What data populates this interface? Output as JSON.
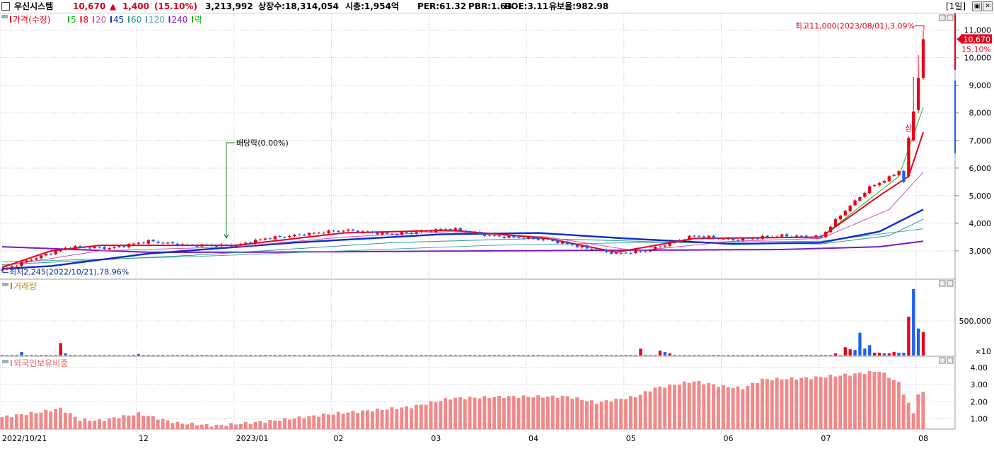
{
  "header": {
    "stock_name": "우신시스템",
    "price": "10,670",
    "change_arrow": "▲",
    "change": "1,400",
    "change_pct": "(15.10%)",
    "volume": "3,213,992",
    "listed_shares": "상장수:18,314,054",
    "market_cap": "시총:1,954억",
    "per": "PER:61.32",
    "pbr": "PBR:1.63",
    "roe": "ROE:3.11",
    "reserve_ratio": "유보율:982.98",
    "period": "[1일]",
    "win_restore": "▣",
    "win_close": "✕"
  },
  "colors": {
    "up": "#e8001a",
    "down": "#1e5ff0",
    "ma5": "#19b319",
    "ma8": "#e8001a",
    "ma20": "#d050b8",
    "ma45": "#0a2cc8",
    "ma60": "#2a9b8f",
    "ma120": "#4fa8a0",
    "ma240": "#7a18c8",
    "foreign": "#f28888",
    "grid": "#c8c8c8"
  },
  "chart_data": [
    {
      "type": "candlestick",
      "panel": "price",
      "legend": [
        {
          "label": "가격(수정)",
          "color": "#e8001a"
        },
        {
          "label": "5",
          "color": "#19b319"
        },
        {
          "label": "8",
          "color": "#e8001a"
        },
        {
          "label": "20",
          "color": "#d050b8"
        },
        {
          "label": "45",
          "color": "#0a2cc8"
        },
        {
          "label": "60",
          "color": "#2a9b8f"
        },
        {
          "label": "120",
          "color": "#4fa8a0"
        },
        {
          "label": "240",
          "color": "#7a18c8"
        },
        {
          "label": "락",
          "color": "#19b319"
        }
      ],
      "y_ticks": [
        {
          "label": "11,000",
          "v": 11000
        },
        {
          "label": "10,000",
          "v": 10000
        },
        {
          "label": "9,000",
          "v": 9000
        },
        {
          "label": "8,000",
          "v": 8000
        },
        {
          "label": "7,000",
          "v": 7000
        },
        {
          "label": "6,000",
          "v": 6000
        },
        {
          "label": "5,000",
          "v": 5000
        },
        {
          "label": "4,000",
          "v": 4000
        },
        {
          "label": "3,000",
          "v": 3000
        }
      ],
      "ylim": [
        2000,
        11400
      ],
      "current_price": {
        "label": "10,670",
        "value": 10670,
        "pct_label": "15.10%"
      },
      "annotations": {
        "high": {
          "label": "최고11,000(2023/08/01),3.09%",
          "value": 11000
        },
        "low": {
          "label": "최저2,245(2022/10/21),78.96%",
          "value": 2245
        },
        "dividend": {
          "label": "배당락(0.00%)",
          "date": "2022/12/28"
        },
        "upper_limit": {
          "label": "상",
          "date": "2023/07/27"
        }
      },
      "x_labels": [
        "2022/10/21",
        "12",
        "2023/01",
        "02",
        "03",
        "04",
        "05",
        "06",
        "07",
        "08"
      ],
      "x_label_index": [
        0,
        28,
        48,
        68,
        88,
        108,
        128,
        148,
        168,
        188
      ],
      "price_anchors": [
        {
          "i": 0,
          "close": 2300
        },
        {
          "i": 6,
          "close": 2700
        },
        {
          "i": 14,
          "close": 3150
        },
        {
          "i": 22,
          "close": 3100
        },
        {
          "i": 30,
          "close": 3350
        },
        {
          "i": 38,
          "close": 3200
        },
        {
          "i": 48,
          "close": 3200
        },
        {
          "i": 54,
          "close": 3450
        },
        {
          "i": 70,
          "close": 3750
        },
        {
          "i": 80,
          "close": 3600
        },
        {
          "i": 92,
          "close": 3800
        },
        {
          "i": 100,
          "close": 3550
        },
        {
          "i": 112,
          "close": 3400
        },
        {
          "i": 120,
          "close": 3100
        },
        {
          "i": 126,
          "close": 2900
        },
        {
          "i": 132,
          "close": 3000
        },
        {
          "i": 142,
          "close": 3550
        },
        {
          "i": 150,
          "close": 3400
        },
        {
          "i": 160,
          "close": 3550
        },
        {
          "i": 168,
          "close": 3500
        },
        {
          "i": 172,
          "close": 4300
        },
        {
          "i": 178,
          "close": 5300
        },
        {
          "i": 182,
          "close": 5650
        },
        {
          "i": 184,
          "close": 5900
        },
        {
          "i": 185,
          "close": 5500
        },
        {
          "i": 186,
          "close": 7100
        },
        {
          "i": 187,
          "close": 8050
        },
        {
          "i": 188,
          "close": 9270
        },
        {
          "i": 189,
          "close": 10670
        }
      ],
      "recent_candles": [
        {
          "i": 186,
          "open": 5700,
          "high": 7150,
          "low": 5650,
          "close": 7100
        },
        {
          "i": 187,
          "open": 7000,
          "high": 9300,
          "low": 6950,
          "close": 8050
        },
        {
          "i": 188,
          "open": 8100,
          "high": 10100,
          "low": 8000,
          "close": 9270
        },
        {
          "i": 189,
          "open": 9270,
          "high": 11000,
          "low": 9200,
          "close": 10670
        }
      ],
      "moving_averages": {
        "ma5": [
          {
            "i": 168,
            "v": 3500
          },
          {
            "i": 176,
            "v": 4600
          },
          {
            "i": 184,
            "v": 5700
          },
          {
            "i": 189,
            "v": 8200
          }
        ],
        "ma8": [
          {
            "i": 0,
            "v": 2400
          },
          {
            "i": 10,
            "v": 3000
          },
          {
            "i": 20,
            "v": 3200
          },
          {
            "i": 48,
            "v": 3200
          },
          {
            "i": 70,
            "v": 3650
          },
          {
            "i": 92,
            "v": 3750
          },
          {
            "i": 112,
            "v": 3450
          },
          {
            "i": 126,
            "v": 2950
          },
          {
            "i": 142,
            "v": 3450
          },
          {
            "i": 168,
            "v": 3500
          },
          {
            "i": 180,
            "v": 5000
          },
          {
            "i": 186,
            "v": 5700
          },
          {
            "i": 189,
            "v": 7300
          }
        ],
        "ma20": [
          {
            "i": 0,
            "v": 2450
          },
          {
            "i": 20,
            "v": 3000
          },
          {
            "i": 48,
            "v": 3150
          },
          {
            "i": 70,
            "v": 3500
          },
          {
            "i": 92,
            "v": 3700
          },
          {
            "i": 112,
            "v": 3500
          },
          {
            "i": 130,
            "v": 3000
          },
          {
            "i": 150,
            "v": 3350
          },
          {
            "i": 168,
            "v": 3450
          },
          {
            "i": 182,
            "v": 4500
          },
          {
            "i": 189,
            "v": 5850
          }
        ],
        "ma45": [
          {
            "i": 0,
            "v": 2350
          },
          {
            "i": 10,
            "v": 2450
          },
          {
            "i": 30,
            "v": 2900
          },
          {
            "i": 60,
            "v": 3300
          },
          {
            "i": 90,
            "v": 3600
          },
          {
            "i": 110,
            "v": 3650
          },
          {
            "i": 128,
            "v": 3450
          },
          {
            "i": 150,
            "v": 3250
          },
          {
            "i": 168,
            "v": 3300
          },
          {
            "i": 180,
            "v": 3700
          },
          {
            "i": 189,
            "v": 4500
          }
        ],
        "ma60": [
          {
            "i": 0,
            "v": 2500
          },
          {
            "i": 40,
            "v": 2850
          },
          {
            "i": 80,
            "v": 3300
          },
          {
            "i": 110,
            "v": 3450
          },
          {
            "i": 140,
            "v": 3300
          },
          {
            "i": 168,
            "v": 3250
          },
          {
            "i": 182,
            "v": 3550
          },
          {
            "i": 189,
            "v": 4150
          }
        ],
        "ma120": [
          {
            "i": 0,
            "v": 2600
          },
          {
            "i": 40,
            "v": 2800
          },
          {
            "i": 100,
            "v": 3200
          },
          {
            "i": 130,
            "v": 3300
          },
          {
            "i": 168,
            "v": 3350
          },
          {
            "i": 189,
            "v": 3800
          }
        ],
        "ma240": [
          {
            "i": 0,
            "v": 3150
          },
          {
            "i": 30,
            "v": 2950
          },
          {
            "i": 50,
            "v": 2950
          },
          {
            "i": 100,
            "v": 3000
          },
          {
            "i": 160,
            "v": 3050
          },
          {
            "i": 180,
            "v": 3150
          },
          {
            "i": 189,
            "v": 3350
          }
        ]
      }
    },
    {
      "type": "bar",
      "panel": "volume",
      "legend": "거래량",
      "y_tick": {
        "label": "500,000",
        "v": 500000
      },
      "unit": "×10",
      "ylim": [
        0,
        1000000
      ],
      "base_volume": 8000,
      "spikes": [
        {
          "i": 4,
          "v": 50000
        },
        {
          "i": 12,
          "v": 180000
        },
        {
          "i": 13,
          "v": 30000
        },
        {
          "i": 28,
          "v": 22000
        },
        {
          "i": 131,
          "v": 100000
        },
        {
          "i": 135,
          "v": 70000
        },
        {
          "i": 136,
          "v": 50000
        },
        {
          "i": 137,
          "v": 30000
        },
        {
          "i": 171,
          "v": 30000
        },
        {
          "i": 173,
          "v": 120000
        },
        {
          "i": 174,
          "v": 90000
        },
        {
          "i": 175,
          "v": 80000
        },
        {
          "i": 176,
          "v": 330000
        },
        {
          "i": 177,
          "v": 100000
        },
        {
          "i": 178,
          "v": 150000
        },
        {
          "i": 179,
          "v": 40000
        },
        {
          "i": 180,
          "v": 40000
        },
        {
          "i": 181,
          "v": 30000
        },
        {
          "i": 182,
          "v": 30000
        },
        {
          "i": 183,
          "v": 50000
        },
        {
          "i": 184,
          "v": 40000
        },
        {
          "i": 185,
          "v": 40000
        },
        {
          "i": 186,
          "v": 560000
        },
        {
          "i": 187,
          "v": 960000
        },
        {
          "i": 188,
          "v": 390000
        },
        {
          "i": 189,
          "v": 340000
        }
      ]
    },
    {
      "type": "bar",
      "panel": "foreign_ownership",
      "legend": "외국인보유비중",
      "y_ticks": [
        {
          "label": "4.00",
          "v": 4.0
        },
        {
          "label": "3.00",
          "v": 3.0
        },
        {
          "label": "2.00",
          "v": 2.0
        },
        {
          "label": "1.00",
          "v": 1.0
        }
      ],
      "ylim": [
        0.4,
        4.5
      ],
      "anchors": [
        {
          "i": 0,
          "v": 1.1
        },
        {
          "i": 8,
          "v": 1.4
        },
        {
          "i": 12,
          "v": 1.6
        },
        {
          "i": 16,
          "v": 0.95
        },
        {
          "i": 20,
          "v": 0.9
        },
        {
          "i": 28,
          "v": 1.3
        },
        {
          "i": 36,
          "v": 0.75
        },
        {
          "i": 44,
          "v": 0.6
        },
        {
          "i": 56,
          "v": 0.9
        },
        {
          "i": 68,
          "v": 1.3
        },
        {
          "i": 84,
          "v": 1.7
        },
        {
          "i": 92,
          "v": 2.2
        },
        {
          "i": 104,
          "v": 2.3
        },
        {
          "i": 116,
          "v": 2.3
        },
        {
          "i": 122,
          "v": 1.95
        },
        {
          "i": 130,
          "v": 2.3
        },
        {
          "i": 134,
          "v": 2.8
        },
        {
          "i": 142,
          "v": 3.2
        },
        {
          "i": 148,
          "v": 2.9
        },
        {
          "i": 152,
          "v": 2.8
        },
        {
          "i": 156,
          "v": 3.3
        },
        {
          "i": 166,
          "v": 3.4
        },
        {
          "i": 174,
          "v": 3.6
        },
        {
          "i": 180,
          "v": 3.8
        },
        {
          "i": 184,
          "v": 3.1
        },
        {
          "i": 187,
          "v": 1.3
        },
        {
          "i": 188,
          "v": 2.5
        },
        {
          "i": 189,
          "v": 2.5
        }
      ]
    }
  ]
}
